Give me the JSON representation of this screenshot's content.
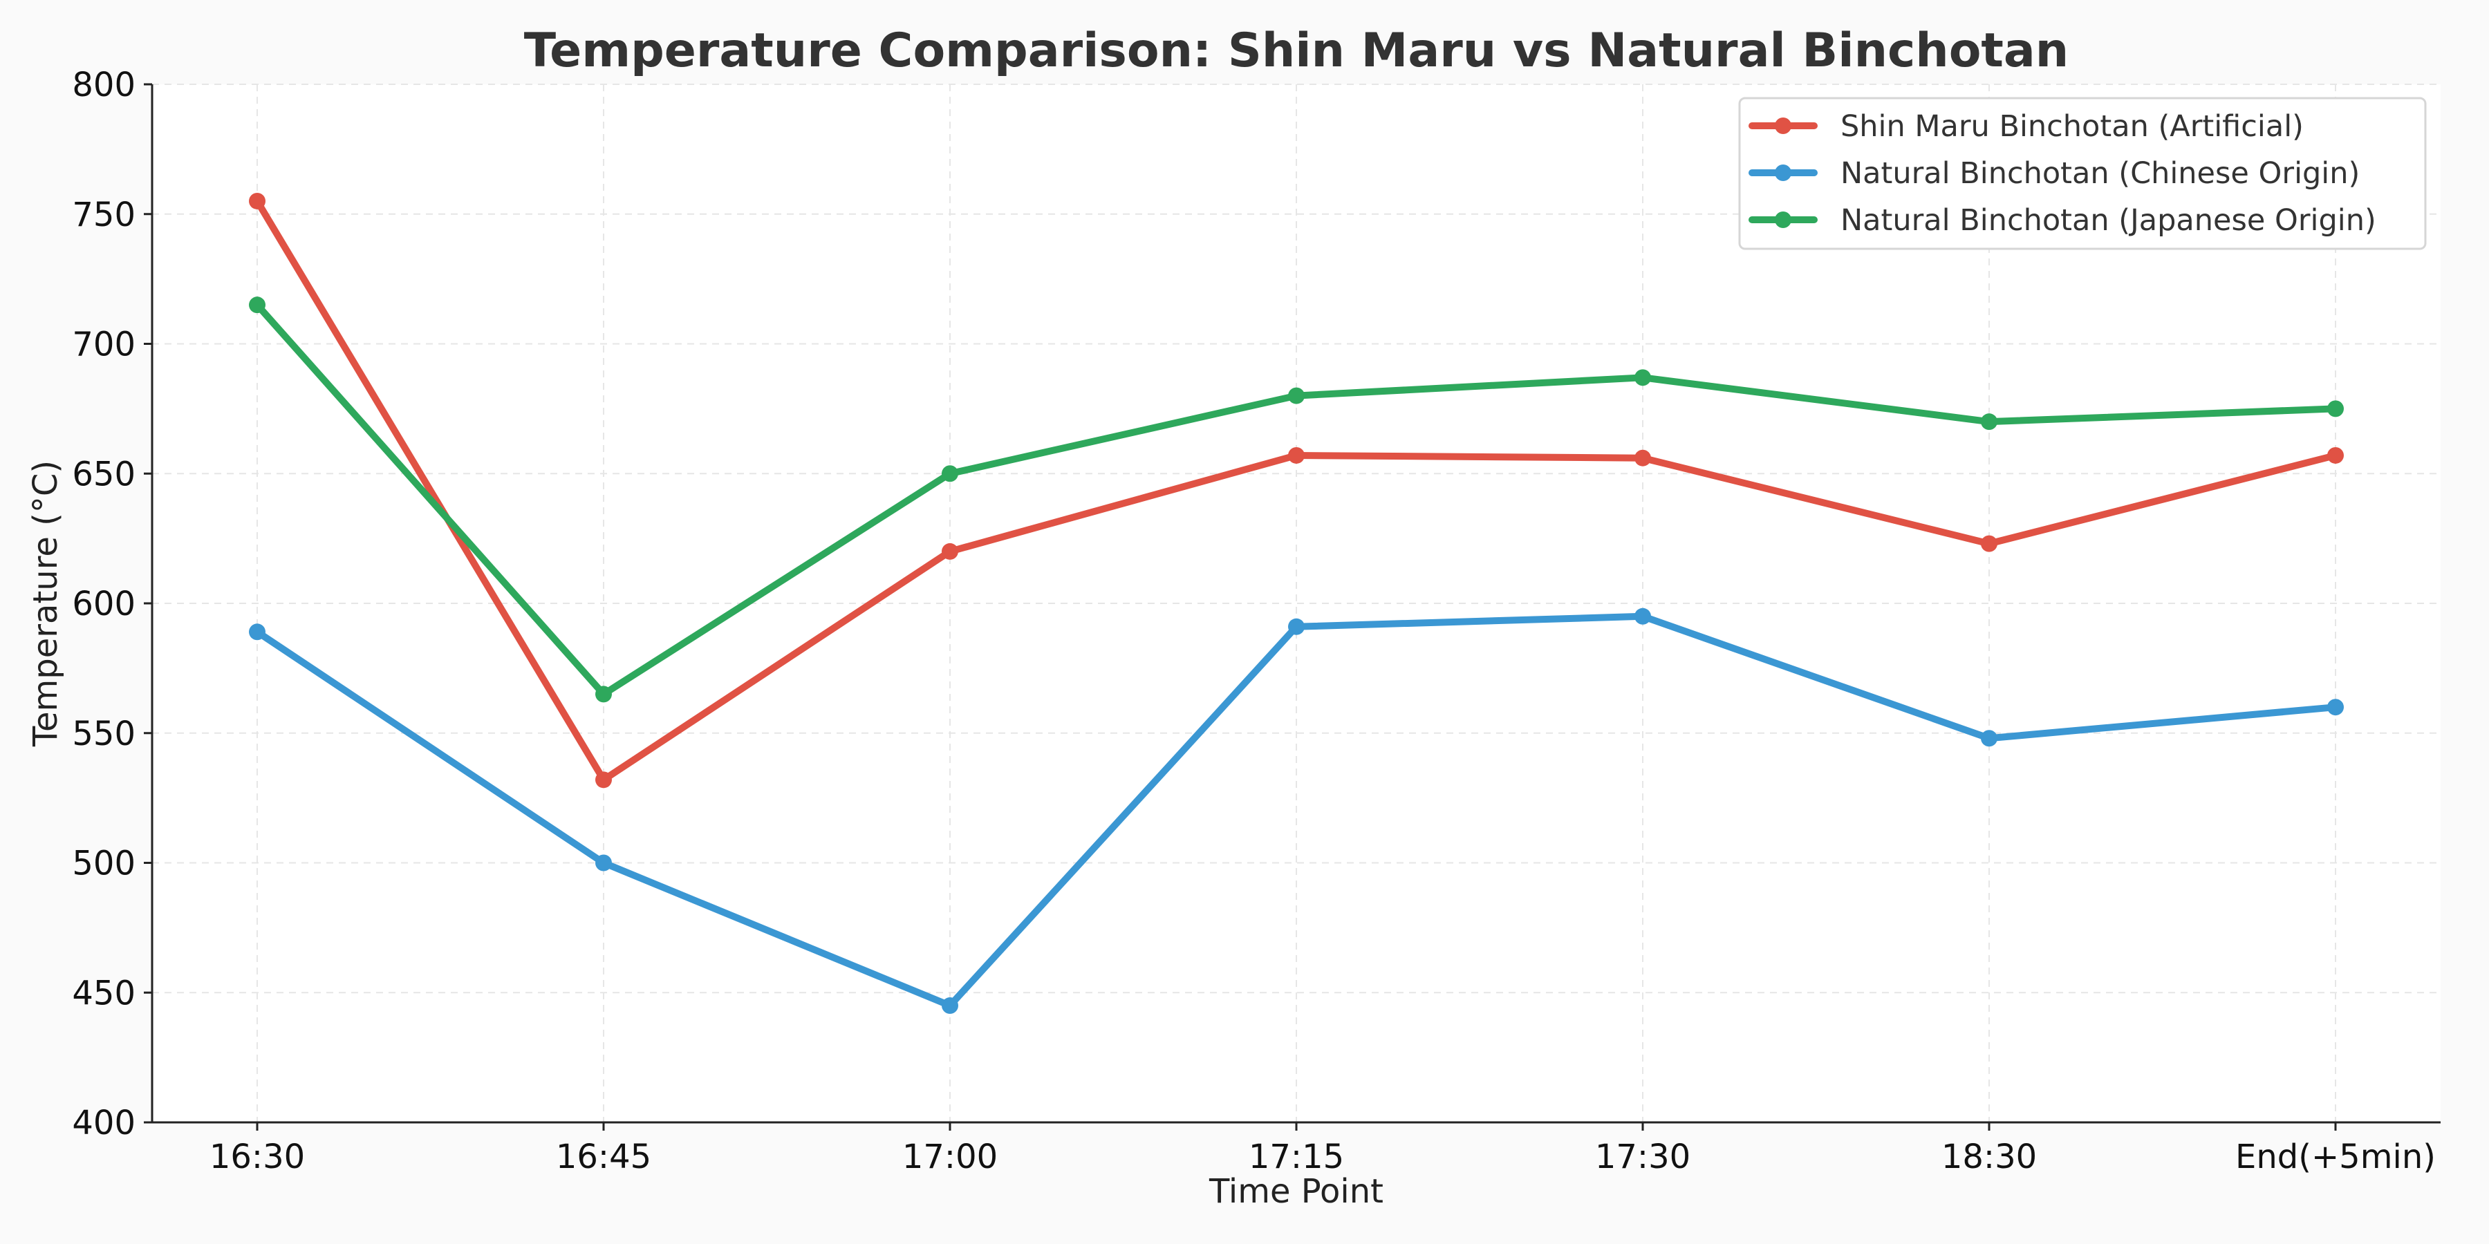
{
  "chart_data": {
    "type": "line",
    "title": "Temperature Comparison: Shin Maru vs Natural Binchotan",
    "xlabel": "Time Point",
    "ylabel": "Temperature (°C)",
    "categories": [
      "16:30",
      "16:45",
      "17:00",
      "17:15",
      "17:30",
      "18:30",
      "End(+5min)"
    ],
    "ylim": [
      400,
      800
    ],
    "yticks": [
      400,
      450,
      500,
      550,
      600,
      650,
      700,
      750,
      800
    ],
    "grid": true,
    "legend_position": "top-right",
    "series": [
      {
        "name": "Shin Maru Binchotan (Artificial)",
        "color": "#e05244",
        "values": [
          755,
          532,
          620,
          657,
          656,
          623,
          657
        ]
      },
      {
        "name": "Natural Binchotan (Chinese Origin)",
        "color": "#3b97d3",
        "values": [
          589,
          500,
          445,
          591,
          595,
          548,
          560
        ]
      },
      {
        "name": "Natural Binchotan (Japanese Origin)",
        "color": "#2ea85c",
        "values": [
          715,
          565,
          650,
          680,
          687,
          670,
          675
        ]
      }
    ]
  }
}
